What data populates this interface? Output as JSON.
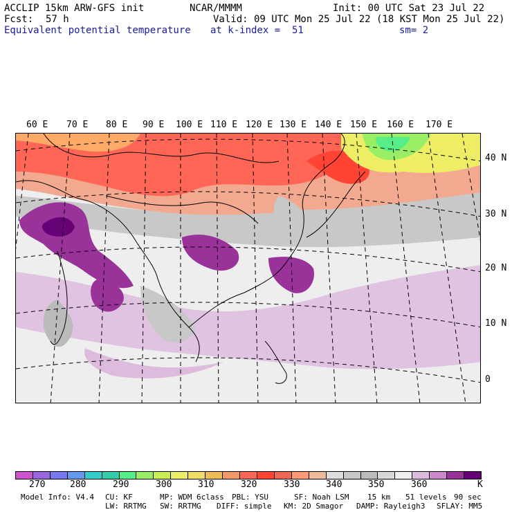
{
  "header": {
    "model_title": "ACCLIP 15km ARW-GFS init",
    "org": "NCAR/MMMM",
    "init": "Init: 00 UTC Sat 23 Jul 22",
    "fcst_label": "Fcst:",
    "fcst_value": "57 h",
    "valid": "Valid: 09 UTC Mon 25 Jul 22 (18 KST Mon 25 Jul 22)",
    "field": "Equivalent potential temperature",
    "level": "at k-index =  51",
    "smoothing": "sm= 2"
  },
  "map": {
    "lon_labels": [
      "60 E",
      "70 E",
      "80 E",
      "90 E",
      "100 E",
      "110 E",
      "120 E",
      "130 E",
      "140 E",
      "150 E",
      "160 E",
      "170 E"
    ],
    "lat_labels": [
      "40 N",
      "30 N",
      "20 N",
      "10 N",
      "0"
    ]
  },
  "colorbar": {
    "colors": [
      "#cc55cc",
      "#9966dd",
      "#7777ee",
      "#6699ee",
      "#33cccc",
      "#33ccaa",
      "#55ee88",
      "#99ee66",
      "#ccee55",
      "#eeee66",
      "#eedd66",
      "#eebb55",
      "#ee9966",
      "#ff6655",
      "#ff4433",
      "#ee6655",
      "#ff9977",
      "#eebb99",
      "#dddddd",
      "#c8c8c8",
      "#bbbbbb",
      "#d8d8d8",
      "#eeeeee",
      "#ddbbdd",
      "#cc88cc",
      "#993399",
      "#660077"
    ],
    "ticks": [
      "270",
      "280",
      "290",
      "300",
      "310",
      "320",
      "330",
      "340",
      "350",
      "360"
    ],
    "unit": "K"
  },
  "footer": {
    "model_info": "Model Info: V4.4",
    "cu": "CU: KF",
    "mp": "MP: WDM 6class",
    "pbl": "PBL: YSU",
    "sf": "SF: Noah LSM",
    "res": "15 km",
    "levels": "51 levels",
    "dt": "90 sec",
    "lw": "LW: RRTMG",
    "sw": "SW: RRTMG",
    "diff": "DIFF: simple",
    "km": "KM: 2D Smagor",
    "damp": "DAMP: Rayleigh3",
    "sflay": "SFLAY: MM5"
  }
}
